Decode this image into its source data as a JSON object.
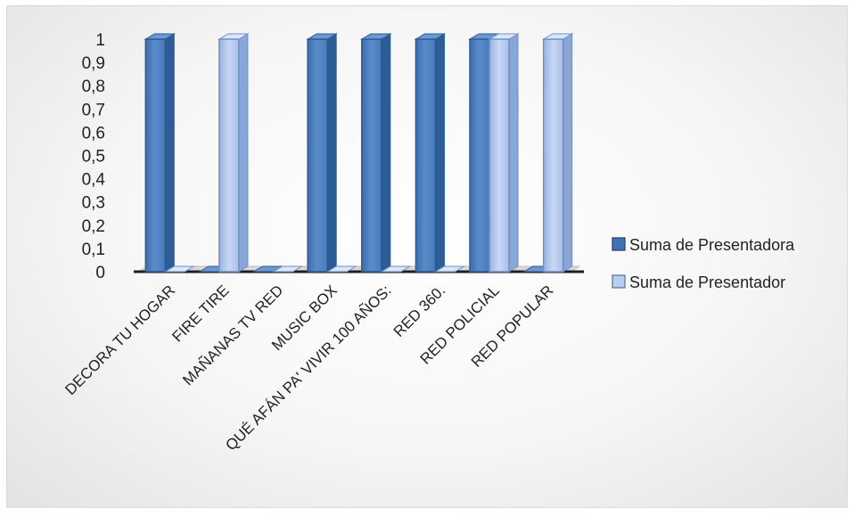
{
  "chart_data": {
    "type": "bar",
    "style": "3d-clustered-column",
    "categories": [
      "DECORA TU HOGAR",
      "FIRE TIRE",
      "MAÑANAS TV RED",
      "MUSIC BOX",
      "QUÉ AFÁN PA' VIVIR 100 AÑOS:",
      "RED 360.",
      "RED POLICIAL",
      "RED POPULAR"
    ],
    "series": [
      {
        "name": "Suma de Presentadora",
        "values": [
          1,
          0,
          0,
          1,
          1,
          1,
          1,
          0
        ],
        "color": "#4f81bd"
      },
      {
        "name": "Suma de Presentador",
        "values": [
          0,
          1,
          0,
          0,
          0,
          0,
          1,
          1
        ],
        "color": "#a9c0e8"
      }
    ],
    "ylim": [
      0,
      1
    ],
    "yticks": [
      "0",
      "0,1",
      "0,2",
      "0,3",
      "0,4",
      "0,5",
      "0,6",
      "0,7",
      "0,8",
      "0,9",
      "1"
    ],
    "title": "",
    "xlabel": "",
    "ylabel": "",
    "grid": false,
    "legend_position": "right"
  }
}
